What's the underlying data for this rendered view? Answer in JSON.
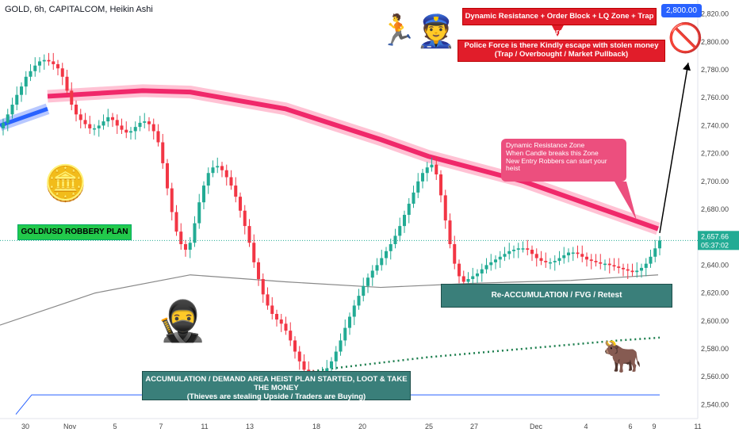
{
  "title": "GOLD, 6h, CAPITALCOM, Heikin Ashi",
  "colors": {
    "up": "#22ab94",
    "down": "#f23645",
    "ribbon_red": "#f0286a",
    "ribbon_blue": "#2962ff",
    "ma_gray": "#888888",
    "dots_green": "#1a7d4c",
    "baseline_blue": "#2962ff"
  },
  "annotations": {
    "top_red": "Dynamic Resistance + Order Block + LQ Zone + Trap area",
    "price_badge": "2,800.00",
    "police_line1": "Police Force is there Kindly escape with stolen money",
    "police_line2": "(Trap / Overbought / Market Pullback)",
    "pink_line1": "Dynamic Resistance Zone",
    "pink_line2": "When Candle breaks this Zone",
    "pink_line3": "New Entry Robbers can start your heist",
    "plan_label": "GOLD/USD ROBBERY PLAN",
    "reaccum": "Re-ACCUMULATION / FVG / Retest",
    "accum_line1": "ACCUMULATION / DEMAND AREA HEIST PLAN STARTED, LOOT & TAKE THE MONEY",
    "accum_line2": "(Thieves are stealing Upside / Traders are Buying)",
    "current_price": "2,657.66",
    "countdown": "05:37:02"
  },
  "icons": [
    "gold-bars-icon",
    "thief-icon",
    "police-icon",
    "robber-with-bag-icon",
    "bull-bear-icon",
    "no-thief-icon"
  ],
  "chart_data": {
    "type": "candlestick",
    "style": "Heikin Ashi",
    "symbol": "GOLD",
    "timeframe": "6h",
    "ylim": [
      2530,
      2830
    ],
    "yticks": [
      2540,
      2560,
      2580,
      2600,
      2620,
      2640,
      2660,
      2680,
      2700,
      2720,
      2740,
      2760,
      2780,
      2800,
      2820
    ],
    "ytick_labels": [
      "2,540.00",
      "2,560.00",
      "2,580.00",
      "2,600.00",
      "2,620.00",
      "2,640.00",
      "2,660.00",
      "2,680.00",
      "2,700.00",
      "2,720.00",
      "2,740.00",
      "2,760.00",
      "2,780.00",
      "2,800.00",
      "2,820.00"
    ],
    "xtick_labels": [
      "30",
      "Nov",
      "5",
      "7",
      "11",
      "13",
      "18",
      "20",
      "25",
      "27",
      "Dec",
      "4",
      "6",
      "9",
      "11"
    ],
    "closes": [
      2742,
      2748,
      2755,
      2762,
      2768,
      2775,
      2779,
      2783,
      2786,
      2787,
      2786,
      2784,
      2781,
      2775,
      2765,
      2755,
      2748,
      2744,
      2741,
      2738,
      2738,
      2740,
      2743,
      2746,
      2744,
      2740,
      2737,
      2735,
      2736,
      2739,
      2742,
      2743,
      2741,
      2736,
      2728,
      2713,
      2695,
      2678,
      2664,
      2655,
      2651,
      2656,
      2670,
      2685,
      2697,
      2706,
      2710,
      2711,
      2708,
      2703,
      2697,
      2689,
      2679,
      2668,
      2656,
      2642,
      2630,
      2619,
      2611,
      2605,
      2601,
      2598,
      2593,
      2586,
      2578,
      2571,
      2565,
      2562,
      2560,
      2560,
      2562,
      2566,
      2571,
      2578,
      2586,
      2595,
      2603,
      2611,
      2618,
      2625,
      2631,
      2636,
      2640,
      2645,
      2650,
      2655,
      2661,
      2668,
      2676,
      2684,
      2692,
      2700,
      2706,
      2710,
      2712,
      2705,
      2690,
      2672,
      2655,
      2641,
      2632,
      2628,
      2630,
      2632,
      2634,
      2637,
      2640,
      2642,
      2644,
      2646,
      2648,
      2650,
      2651,
      2652,
      2652,
      2651,
      2648,
      2645,
      2643,
      2642,
      2642,
      2643,
      2645,
      2647,
      2649,
      2649,
      2648,
      2646,
      2644,
      2643,
      2642,
      2641,
      2641,
      2640,
      2639,
      2638,
      2637,
      2636,
      2635,
      2636,
      2638,
      2641,
      2646,
      2652,
      2657.66
    ],
    "ribbon_red": [
      {
        "x": 60,
        "v": 2761
      },
      {
        "x": 180,
        "v": 2765
      },
      {
        "x": 240,
        "v": 2764
      },
      {
        "x": 360,
        "v": 2752
      },
      {
        "x": 480,
        "v": 2730
      },
      {
        "x": 540,
        "v": 2718
      },
      {
        "x": 660,
        "v": 2700
      },
      {
        "x": 760,
        "v": 2680
      },
      {
        "x": 830,
        "v": 2666
      }
    ],
    "ribbon_blue": [
      {
        "x": 0,
        "v": 2740
      },
      {
        "x": 60,
        "v": 2752
      }
    ],
    "ma_gray": [
      {
        "x": 0,
        "v": 2597
      },
      {
        "x": 120,
        "v": 2620
      },
      {
        "x": 240,
        "v": 2633
      },
      {
        "x": 360,
        "v": 2628
      },
      {
        "x": 480,
        "v": 2624
      },
      {
        "x": 600,
        "v": 2627
      },
      {
        "x": 720,
        "v": 2629
      },
      {
        "x": 830,
        "v": 2633
      }
    ],
    "dots_green": [
      {
        "x": 180,
        "v": 2549
      },
      {
        "x": 300,
        "v": 2556
      },
      {
        "x": 420,
        "v": 2566
      },
      {
        "x": 540,
        "v": 2574
      },
      {
        "x": 660,
        "v": 2580
      },
      {
        "x": 780,
        "v": 2586
      },
      {
        "x": 832,
        "v": 2588
      }
    ],
    "baseline_blue": [
      {
        "x": 20,
        "v": 2533
      },
      {
        "x": 40,
        "v": 2547
      },
      {
        "x": 832,
        "v": 2547
      }
    ],
    "current_price": 2657.66,
    "target_price": 2800
  }
}
